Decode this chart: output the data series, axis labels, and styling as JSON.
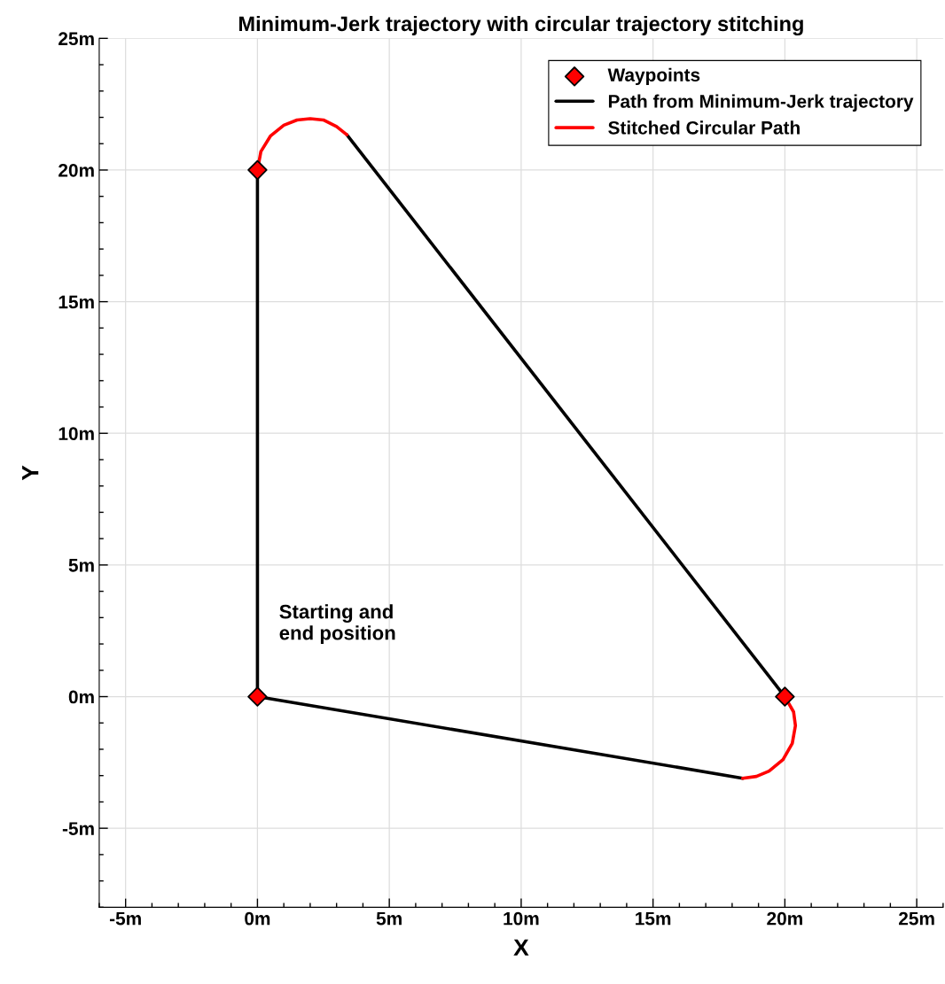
{
  "chart_data": {
    "type": "line",
    "title": "Minimum-Jerk trajectory with circular trajectory stitching",
    "xlabel": "X",
    "ylabel": "Y",
    "xlim": [
      -6,
      26
    ],
    "ylim": [
      -8,
      25
    ],
    "xticks": [
      {
        "value": -5,
        "label": "-5m"
      },
      {
        "value": 0,
        "label": "0m"
      },
      {
        "value": 5,
        "label": "5m"
      },
      {
        "value": 10,
        "label": "10m"
      },
      {
        "value": 15,
        "label": "15m"
      },
      {
        "value": 20,
        "label": "20m"
      },
      {
        "value": 25,
        "label": "25m"
      }
    ],
    "yticks": [
      {
        "value": -5,
        "label": "-5m"
      },
      {
        "value": 0,
        "label": "0m"
      },
      {
        "value": 5,
        "label": "5m"
      },
      {
        "value": 10,
        "label": "10m"
      },
      {
        "value": 15,
        "label": "15m"
      },
      {
        "value": 20,
        "label": "20m"
      },
      {
        "value": 25,
        "label": "25m"
      }
    ],
    "grid": true,
    "legend": "top right",
    "series": [
      {
        "name": "Waypoints",
        "type": "scatter",
        "marker": "diamond",
        "color": "#ff0000",
        "x": [
          0,
          0,
          20
        ],
        "values": [
          0,
          20,
          0
        ]
      },
      {
        "name": "Path from Minimum-Jerk trajectory",
        "marker": "none",
        "color": "#000000",
        "x": [
          0,
          0,
          null,
          3.39,
          20,
          null,
          18.4,
          0
        ],
        "values": [
          0,
          20,
          null,
          21.34,
          0,
          null,
          -3.1,
          0
        ]
      },
      {
        "name": "Stitched Circular Path",
        "marker": "none",
        "color": "#ff0000",
        "x": [
          0,
          0.13,
          0.5,
          1,
          1.5,
          2,
          2.5,
          3,
          3.39,
          null,
          20,
          20.33,
          20.4,
          20.28,
          19.93,
          19.4,
          18.92,
          18.4
        ],
        "values": [
          20,
          20.7,
          21.3,
          21.7,
          21.9,
          21.95,
          21.9,
          21.65,
          21.34,
          null,
          0,
          -0.58,
          -1.1,
          -1.78,
          -2.39,
          -2.83,
          -3.03,
          -3.1
        ]
      }
    ],
    "annotations": [
      "Starting and\nend position"
    ]
  }
}
